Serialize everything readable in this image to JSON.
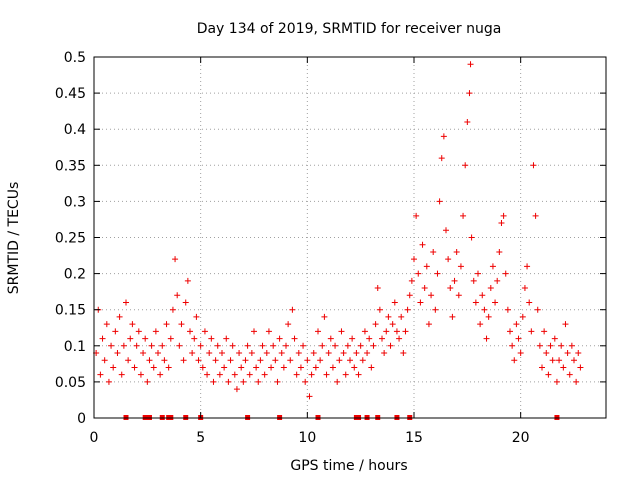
{
  "chart_data": {
    "type": "scatter",
    "title": "Day 134 of 2019, SRMTID for receiver nuga",
    "xlabel": "GPS time / hours",
    "ylabel": "SRMTID / TECUs",
    "xlim": [
      0,
      24
    ],
    "ylim": [
      0,
      0.5
    ],
    "xticks": [
      0,
      5,
      10,
      15,
      20
    ],
    "xtick_labels": [
      "0",
      "5",
      "10",
      "15",
      "20"
    ],
    "yticks": [
      0,
      0.05,
      0.1,
      0.15,
      0.2,
      0.25,
      0.3,
      0.35,
      0.4,
      0.45,
      0.5
    ],
    "ytick_labels": [
      "0",
      "0.05",
      "0.1",
      "0.15",
      "0.2",
      "0.25",
      "0.3",
      "0.35",
      "0.4",
      "0.45",
      "0.5"
    ],
    "grid": true,
    "color": "#ee0000",
    "marker": "plus",
    "series": [
      {
        "name": "SRMTID",
        "points": [
          [
            0.1,
            0.09
          ],
          [
            0.2,
            0.15
          ],
          [
            0.3,
            0.06
          ],
          [
            0.4,
            0.11
          ],
          [
            0.5,
            0.08
          ],
          [
            0.6,
            0.13
          ],
          [
            0.7,
            0.05
          ],
          [
            0.8,
            0.1
          ],
          [
            0.9,
            0.07
          ],
          [
            1.0,
            0.12
          ],
          [
            1.1,
            0.09
          ],
          [
            1.2,
            0.14
          ],
          [
            1.3,
            0.06
          ],
          [
            1.4,
            0.1
          ],
          [
            1.5,
            0.16
          ],
          [
            1.6,
            0.08
          ],
          [
            1.7,
            0.11
          ],
          [
            1.8,
            0.13
          ],
          [
            1.9,
            0.07
          ],
          [
            2.0,
            0.1
          ],
          [
            2.1,
            0.12
          ],
          [
            2.2,
            0.06
          ],
          [
            2.3,
            0.09
          ],
          [
            2.4,
            0.11
          ],
          [
            2.5,
            0.05
          ],
          [
            2.6,
            0.08
          ],
          [
            2.7,
            0.1
          ],
          [
            2.8,
            0.07
          ],
          [
            2.9,
            0.12
          ],
          [
            3.0,
            0.09
          ],
          [
            3.1,
            0.06
          ],
          [
            3.2,
            0.1
          ],
          [
            3.3,
            0.08
          ],
          [
            3.4,
            0.13
          ],
          [
            3.5,
            0.07
          ],
          [
            3.6,
            0.11
          ],
          [
            3.7,
            0.15
          ],
          [
            3.8,
            0.22
          ],
          [
            3.9,
            0.17
          ],
          [
            4.0,
            0.1
          ],
          [
            4.1,
            0.13
          ],
          [
            4.2,
            0.08
          ],
          [
            4.3,
            0.16
          ],
          [
            4.4,
            0.19
          ],
          [
            4.5,
            0.12
          ],
          [
            4.6,
            0.09
          ],
          [
            4.7,
            0.11
          ],
          [
            4.8,
            0.14
          ],
          [
            4.9,
            0.08
          ],
          [
            5.0,
            0.1
          ],
          [
            5.1,
            0.07
          ],
          [
            5.2,
            0.12
          ],
          [
            5.3,
            0.06
          ],
          [
            5.4,
            0.09
          ],
          [
            5.5,
            0.11
          ],
          [
            5.6,
            0.05
          ],
          [
            5.7,
            0.08
          ],
          [
            5.8,
            0.1
          ],
          [
            5.9,
            0.06
          ],
          [
            6.0,
            0.09
          ],
          [
            6.1,
            0.07
          ],
          [
            6.2,
            0.11
          ],
          [
            6.3,
            0.05
          ],
          [
            6.4,
            0.08
          ],
          [
            6.5,
            0.1
          ],
          [
            6.6,
            0.06
          ],
          [
            6.7,
            0.04
          ],
          [
            6.8,
            0.09
          ],
          [
            6.9,
            0.07
          ],
          [
            7.0,
            0.05
          ],
          [
            7.1,
            0.08
          ],
          [
            7.2,
            0.1
          ],
          [
            7.3,
            0.06
          ],
          [
            7.4,
            0.09
          ],
          [
            7.5,
            0.12
          ],
          [
            7.6,
            0.07
          ],
          [
            7.7,
            0.05
          ],
          [
            7.8,
            0.08
          ],
          [
            7.9,
            0.1
          ],
          [
            8.0,
            0.06
          ],
          [
            8.1,
            0.09
          ],
          [
            8.2,
            0.12
          ],
          [
            8.3,
            0.07
          ],
          [
            8.4,
            0.1
          ],
          [
            8.5,
            0.08
          ],
          [
            8.6,
            0.05
          ],
          [
            8.7,
            0.11
          ],
          [
            8.8,
            0.09
          ],
          [
            8.9,
            0.07
          ],
          [
            9.0,
            0.1
          ],
          [
            9.1,
            0.13
          ],
          [
            9.2,
            0.08
          ],
          [
            9.3,
            0.15
          ],
          [
            9.4,
            0.11
          ],
          [
            9.5,
            0.06
          ],
          [
            9.6,
            0.09
          ],
          [
            9.7,
            0.07
          ],
          [
            9.8,
            0.1
          ],
          [
            9.9,
            0.05
          ],
          [
            10.0,
            0.08
          ],
          [
            10.1,
            0.03
          ],
          [
            10.2,
            0.06
          ],
          [
            10.3,
            0.09
          ],
          [
            10.4,
            0.07
          ],
          [
            10.5,
            0.12
          ],
          [
            10.6,
            0.08
          ],
          [
            10.7,
            0.1
          ],
          [
            10.8,
            0.14
          ],
          [
            10.9,
            0.06
          ],
          [
            11.0,
            0.09
          ],
          [
            11.1,
            0.11
          ],
          [
            11.2,
            0.07
          ],
          [
            11.3,
            0.1
          ],
          [
            11.4,
            0.05
          ],
          [
            11.5,
            0.08
          ],
          [
            11.6,
            0.12
          ],
          [
            11.7,
            0.09
          ],
          [
            11.8,
            0.06
          ],
          [
            11.9,
            0.1
          ],
          [
            12.0,
            0.08
          ],
          [
            12.1,
            0.11
          ],
          [
            12.2,
            0.07
          ],
          [
            12.3,
            0.09
          ],
          [
            12.4,
            0.06
          ],
          [
            12.5,
            0.1
          ],
          [
            12.6,
            0.08
          ],
          [
            12.7,
            0.12
          ],
          [
            12.8,
            0.09
          ],
          [
            12.9,
            0.11
          ],
          [
            13.0,
            0.07
          ],
          [
            13.1,
            0.1
          ],
          [
            13.2,
            0.13
          ],
          [
            13.3,
            0.18
          ],
          [
            13.4,
            0.15
          ],
          [
            13.5,
            0.11
          ],
          [
            13.6,
            0.09
          ],
          [
            13.7,
            0.12
          ],
          [
            13.8,
            0.14
          ],
          [
            13.9,
            0.1
          ],
          [
            14.0,
            0.13
          ],
          [
            14.1,
            0.16
          ],
          [
            14.2,
            0.12
          ],
          [
            14.3,
            0.11
          ],
          [
            14.4,
            0.14
          ],
          [
            14.5,
            0.09
          ],
          [
            14.6,
            0.12
          ],
          [
            14.7,
            0.15
          ],
          [
            14.8,
            0.17
          ],
          [
            14.9,
            0.19
          ],
          [
            15.0,
            0.22
          ],
          [
            15.1,
            0.28
          ],
          [
            15.2,
            0.2
          ],
          [
            15.3,
            0.16
          ],
          [
            15.4,
            0.24
          ],
          [
            15.5,
            0.18
          ],
          [
            15.6,
            0.21
          ],
          [
            15.7,
            0.13
          ],
          [
            15.8,
            0.17
          ],
          [
            15.9,
            0.23
          ],
          [
            16.0,
            0.15
          ],
          [
            16.1,
            0.2
          ],
          [
            16.2,
            0.3
          ],
          [
            16.3,
            0.36
          ],
          [
            16.4,
            0.39
          ],
          [
            16.5,
            0.26
          ],
          [
            16.6,
            0.22
          ],
          [
            16.7,
            0.18
          ],
          [
            16.8,
            0.14
          ],
          [
            16.9,
            0.19
          ],
          [
            17.0,
            0.23
          ],
          [
            17.1,
            0.17
          ],
          [
            17.2,
            0.21
          ],
          [
            17.3,
            0.28
          ],
          [
            17.4,
            0.35
          ],
          [
            17.5,
            0.41
          ],
          [
            17.6,
            0.45
          ],
          [
            17.65,
            0.49
          ],
          [
            17.7,
            0.25
          ],
          [
            17.8,
            0.19
          ],
          [
            17.9,
            0.16
          ],
          [
            18.0,
            0.2
          ],
          [
            18.1,
            0.13
          ],
          [
            18.2,
            0.17
          ],
          [
            18.3,
            0.15
          ],
          [
            18.4,
            0.11
          ],
          [
            18.5,
            0.14
          ],
          [
            18.6,
            0.18
          ],
          [
            18.7,
            0.21
          ],
          [
            18.8,
            0.16
          ],
          [
            18.9,
            0.19
          ],
          [
            19.0,
            0.23
          ],
          [
            19.1,
            0.27
          ],
          [
            19.2,
            0.28
          ],
          [
            19.3,
            0.2
          ],
          [
            19.4,
            0.15
          ],
          [
            19.5,
            0.12
          ],
          [
            19.6,
            0.1
          ],
          [
            19.7,
            0.08
          ],
          [
            19.8,
            0.13
          ],
          [
            19.9,
            0.11
          ],
          [
            20.0,
            0.09
          ],
          [
            20.1,
            0.14
          ],
          [
            20.2,
            0.18
          ],
          [
            20.3,
            0.21
          ],
          [
            20.4,
            0.16
          ],
          [
            20.5,
            0.12
          ],
          [
            20.6,
            0.35
          ],
          [
            20.7,
            0.28
          ],
          [
            20.8,
            0.15
          ],
          [
            20.9,
            0.1
          ],
          [
            21.0,
            0.07
          ],
          [
            21.1,
            0.12
          ],
          [
            21.2,
            0.09
          ],
          [
            21.3,
            0.06
          ],
          [
            21.4,
            0.1
          ],
          [
            21.5,
            0.08
          ],
          [
            21.6,
            0.11
          ],
          [
            21.7,
            0.05
          ],
          [
            21.8,
            0.08
          ],
          [
            21.9,
            0.1
          ],
          [
            22.0,
            0.07
          ],
          [
            22.1,
            0.13
          ],
          [
            22.2,
            0.09
          ],
          [
            22.3,
            0.06
          ],
          [
            22.4,
            0.1
          ],
          [
            22.5,
            0.08
          ],
          [
            22.6,
            0.05
          ],
          [
            22.7,
            0.09
          ],
          [
            22.8,
            0.07
          ]
        ]
      }
    ],
    "gap_markers_x": [
      1.5,
      2.4,
      2.6,
      3.2,
      3.5,
      3.6,
      4.3,
      5.0,
      7.2,
      8.7,
      10.5,
      12.3,
      12.4,
      12.8,
      13.3,
      14.2,
      14.8,
      21.7
    ]
  }
}
